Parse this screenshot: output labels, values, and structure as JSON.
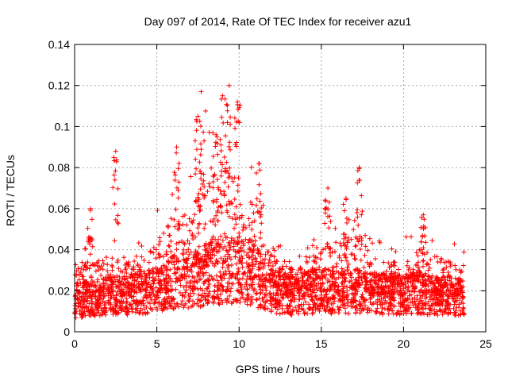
{
  "chart_data": {
    "type": "scatter",
    "title": "Day 097 of 2014, Rate Of TEC Index for receiver azu1",
    "xlabel": "GPS time / hours",
    "ylabel": "ROTI / TECUs",
    "xlim": [
      0,
      25
    ],
    "ylim": [
      0,
      0.14
    ],
    "xticks": [
      0,
      5,
      10,
      15,
      20,
      25
    ],
    "yticks": [
      0,
      0.02,
      0.04,
      0.06,
      0.08,
      0.1,
      0.12,
      0.14
    ],
    "xtick_labels": [
      "0",
      "5",
      "10",
      "15",
      "20",
      "25"
    ],
    "ytick_labels": [
      "0",
      "0.02",
      "0.04",
      "0.06",
      "0.08",
      "0.1",
      "0.12",
      "0.14"
    ],
    "grid": true,
    "marker": "plus",
    "color": "#ff0000",
    "series": [
      {
        "name": "ROTI",
        "x_range": [
          0,
          23.7
        ],
        "profile": [
          {
            "x": 0.0,
            "base": 0.015,
            "top": 0.045
          },
          {
            "x": 1.0,
            "base": 0.016,
            "top": 0.045
          },
          {
            "x": 2.0,
            "base": 0.017,
            "top": 0.05
          },
          {
            "x": 3.0,
            "base": 0.018,
            "top": 0.045
          },
          {
            "x": 4.0,
            "base": 0.019,
            "top": 0.045
          },
          {
            "x": 5.0,
            "base": 0.02,
            "top": 0.06
          },
          {
            "x": 6.0,
            "base": 0.024,
            "top": 0.08
          },
          {
            "x": 7.0,
            "base": 0.026,
            "top": 0.08
          },
          {
            "x": 8.0,
            "base": 0.028,
            "top": 0.11
          },
          {
            "x": 9.0,
            "base": 0.03,
            "top": 0.11
          },
          {
            "x": 10.0,
            "base": 0.03,
            "top": 0.11
          },
          {
            "x": 11.0,
            "base": 0.027,
            "top": 0.08
          },
          {
            "x": 12.0,
            "base": 0.02,
            "top": 0.05
          },
          {
            "x": 13.0,
            "base": 0.018,
            "top": 0.04
          },
          {
            "x": 14.0,
            "base": 0.019,
            "top": 0.045
          },
          {
            "x": 15.0,
            "base": 0.02,
            "top": 0.06
          },
          {
            "x": 16.0,
            "base": 0.019,
            "top": 0.06
          },
          {
            "x": 17.0,
            "base": 0.02,
            "top": 0.065
          },
          {
            "x": 18.0,
            "base": 0.019,
            "top": 0.055
          },
          {
            "x": 19.0,
            "base": 0.018,
            "top": 0.045
          },
          {
            "x": 20.0,
            "base": 0.018,
            "top": 0.045
          },
          {
            "x": 21.0,
            "base": 0.019,
            "top": 0.055
          },
          {
            "x": 22.0,
            "base": 0.018,
            "top": 0.05
          },
          {
            "x": 23.0,
            "base": 0.017,
            "top": 0.045
          },
          {
            "x": 23.7,
            "base": 0.016,
            "top": 0.045
          }
        ],
        "clusters": [
          {
            "x": 2.5,
            "y": 0.088
          },
          {
            "x": 0.97,
            "y": 0.06
          },
          {
            "x": 6.2,
            "y": 0.09
          },
          {
            "x": 7.5,
            "y": 0.105
          },
          {
            "x": 7.7,
            "y": 0.117
          },
          {
            "x": 8.6,
            "y": 0.096
          },
          {
            "x": 9.0,
            "y": 0.115
          },
          {
            "x": 9.4,
            "y": 0.12
          },
          {
            "x": 9.9,
            "y": 0.112
          },
          {
            "x": 11.2,
            "y": 0.082
          },
          {
            "x": 15.4,
            "y": 0.07
          },
          {
            "x": 17.3,
            "y": 0.08
          },
          {
            "x": 16.5,
            "y": 0.065
          },
          {
            "x": 21.2,
            "y": 0.057
          }
        ]
      }
    ]
  }
}
